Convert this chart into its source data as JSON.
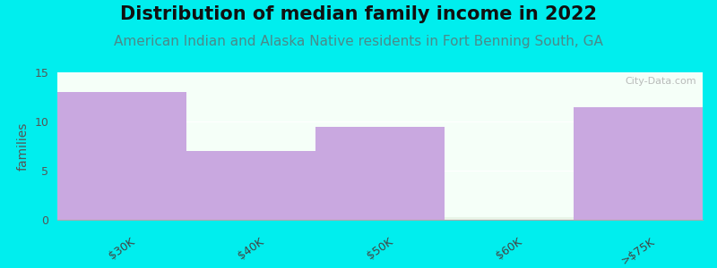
{
  "title": "Distribution of median family income in 2022",
  "subtitle": "American Indian and Alaska Native residents in Fort Benning South, GA",
  "categories": [
    "$30K",
    "$40K",
    "$50K",
    "$60K",
    ">$75K"
  ],
  "values": [
    13.0,
    7.0,
    9.5,
    0.3,
    11.5
  ],
  "bar_colors": [
    "#c9a8e0",
    "#c9a8e0",
    "#c9a8e0",
    "#e8f5e8",
    "#c9a8e0"
  ],
  "ylabel": "families",
  "ylim": [
    0,
    15
  ],
  "yticks": [
    0,
    5,
    10,
    15
  ],
  "background_color": "#00EEEE",
  "plot_bg_top": "#e8f5f0",
  "plot_bg_bottom": "#f5fff8",
  "title_fontsize": 15,
  "subtitle_fontsize": 11,
  "subtitle_color": "#4a8a8a",
  "watermark": "City-Data.com"
}
